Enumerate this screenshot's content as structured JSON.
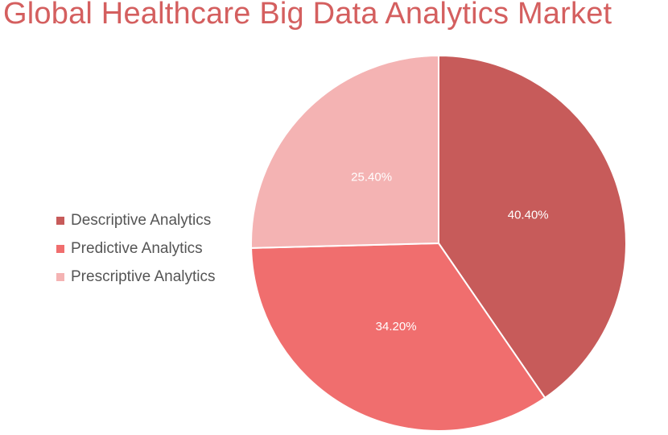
{
  "colors": {
    "title": "#D45F5F",
    "slice_border": "#ffffff"
  },
  "chart_data": {
    "type": "pie",
    "title": "Global Healthcare Big Data Analytics Market",
    "legend_position": "left",
    "slices": [
      {
        "label": "Descriptive Analytics",
        "value": 40.4,
        "display": "40.40%",
        "color": "#C75B5A"
      },
      {
        "label": "Predictive Analytics",
        "value": 34.2,
        "display": "34.20%",
        "color": "#F06E6E"
      },
      {
        "label": "Prescriptive Analytics",
        "value": 25.4,
        "display": "25.40%",
        "color": "#F4B3B3"
      }
    ]
  }
}
